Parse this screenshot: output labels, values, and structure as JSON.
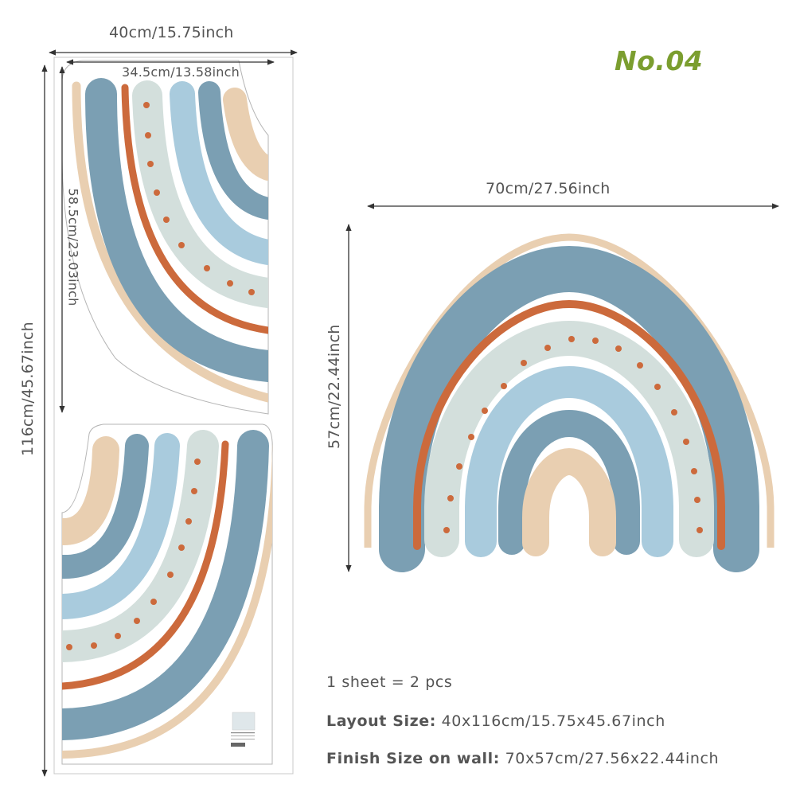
{
  "product_number": "No.04",
  "sheet": {
    "width_label": "40cm/15.75inch",
    "height_label": "116cm/45.67inch",
    "piece_width_label": "34.5cm/13.58inch",
    "piece_height_label": "58.5cm/23.03inch"
  },
  "finished": {
    "width_label": "70cm/27.56inch",
    "height_label": "57cm/22.44inch"
  },
  "specs": [
    {
      "key": "",
      "value": "1 sheet = 2 pcs"
    },
    {
      "key": "Layout Size:",
      "value": "40x116cm/15.75x45.67inch"
    },
    {
      "key": "Finish Size on wall:",
      "value": "70x57cm/27.56x22.44inch"
    }
  ],
  "colors": {
    "steel_blue": "#7b9fb3",
    "light_blue": "#a9cbdd",
    "sage": "#d3dfdc",
    "beige": "#e9cfb1",
    "terracotta": "#cc6a3c",
    "dimension_line": "#333333",
    "title_green": "#7b9e2f"
  }
}
